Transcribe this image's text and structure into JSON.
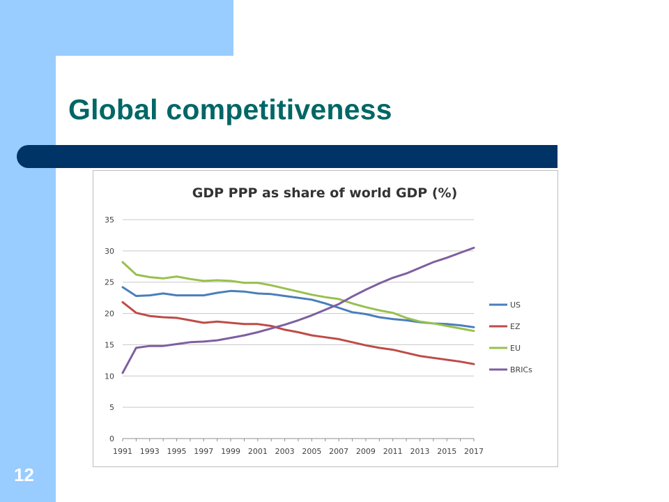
{
  "slide": {
    "title": "Global competitiveness",
    "page_number": "12"
  },
  "colors": {
    "sidebar": "#99ccff",
    "title": "#006666",
    "bar": "#003366"
  },
  "chart_data": {
    "type": "line",
    "title": "GDP PPP as share of world GDP (%)",
    "xlabel": "",
    "ylabel": "",
    "ylim": [
      0,
      35
    ],
    "yticks": [
      0,
      5,
      10,
      15,
      20,
      25,
      30,
      35
    ],
    "x": [
      1991,
      1992,
      1993,
      1994,
      1995,
      1996,
      1997,
      1998,
      1999,
      2000,
      2001,
      2002,
      2003,
      2004,
      2005,
      2006,
      2007,
      2008,
      2009,
      2010,
      2011,
      2012,
      2013,
      2014,
      2015,
      2016,
      2017
    ],
    "xtick_labels": [
      "1991",
      "1993",
      "1995",
      "1997",
      "1999",
      "2001",
      "2003",
      "2005",
      "2007",
      "2009",
      "2011",
      "2013",
      "2015",
      "2017"
    ],
    "grid": true,
    "legend": "right",
    "series": [
      {
        "name": "US",
        "color": "#4a7ebb",
        "values": [
          24.2,
          22.8,
          22.9,
          23.2,
          22.9,
          22.9,
          22.9,
          23.3,
          23.6,
          23.5,
          23.2,
          23.1,
          22.8,
          22.5,
          22.2,
          21.6,
          20.9,
          20.2,
          19.9,
          19.4,
          19.1,
          18.9,
          18.6,
          18.4,
          18.3,
          18.1,
          17.8
        ]
      },
      {
        "name": "EZ",
        "color": "#be4b48",
        "values": [
          21.8,
          20.1,
          19.6,
          19.4,
          19.3,
          18.9,
          18.5,
          18.7,
          18.5,
          18.3,
          18.3,
          18.0,
          17.4,
          17.0,
          16.5,
          16.2,
          15.9,
          15.4,
          14.9,
          14.5,
          14.2,
          13.7,
          13.2,
          12.9,
          12.6,
          12.3,
          11.9
        ]
      },
      {
        "name": "EU",
        "color": "#98c04d",
        "values": [
          28.2,
          26.2,
          25.8,
          25.6,
          25.9,
          25.5,
          25.2,
          25.3,
          25.2,
          24.9,
          24.9,
          24.5,
          24.0,
          23.5,
          23.0,
          22.6,
          22.3,
          21.6,
          21.0,
          20.5,
          20.1,
          19.3,
          18.7,
          18.4,
          18.0,
          17.6,
          17.2
        ]
      },
      {
        "name": "BRICs",
        "color": "#7d5fa0",
        "values": [
          10.5,
          14.5,
          14.8,
          14.8,
          15.1,
          15.4,
          15.5,
          15.7,
          16.1,
          16.5,
          17.0,
          17.6,
          18.2,
          18.9,
          19.7,
          20.6,
          21.5,
          22.7,
          23.8,
          24.8,
          25.7,
          26.4,
          27.3,
          28.2,
          28.9,
          29.7,
          30.5
        ]
      }
    ]
  }
}
